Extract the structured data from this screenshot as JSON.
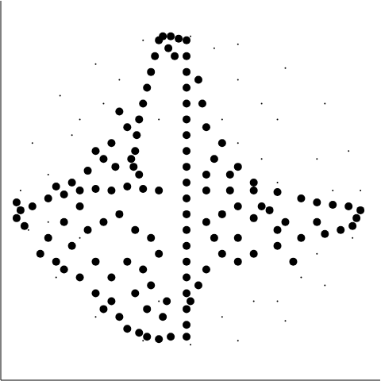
{
  "chart_data": {
    "type": "scatter",
    "xlim": [
      0,
      480
    ],
    "ylim": [
      0,
      480
    ],
    "xticks": [
      0,
      480
    ],
    "yticks": [
      0,
      480
    ],
    "tick_labels": false,
    "grid": false,
    "series": [
      {
        "marker": "point",
        "color": "#000000",
        "points": [
          [
            240,
            435
          ],
          [
            300,
            425
          ],
          [
            360,
            395
          ],
          [
            410,
            350
          ],
          [
            440,
            290
          ],
          [
            455,
            240
          ],
          [
            445,
            180
          ],
          [
            410,
            120
          ],
          [
            360,
            75
          ],
          [
            300,
            50
          ],
          [
            240,
            45
          ],
          [
            180,
            50
          ],
          [
            120,
            80
          ],
          [
            70,
            130
          ],
          [
            35,
            190
          ],
          [
            25,
            240
          ],
          [
            40,
            300
          ],
          [
            75,
            360
          ],
          [
            120,
            400
          ],
          [
            180,
            430
          ],
          [
            100,
            330
          ],
          [
            150,
            380
          ],
          [
            300,
            380
          ],
          [
            350,
            330
          ],
          [
            400,
            280
          ],
          [
            380,
            130
          ],
          [
            320,
            100
          ],
          [
            280,
            80
          ],
          [
            100,
            180
          ],
          [
            60,
            260
          ],
          [
            200,
            330
          ],
          [
            280,
            330
          ],
          [
            330,
            280
          ],
          [
            400,
            160
          ],
          [
            200,
            100
          ],
          [
            90,
            310
          ],
          [
            330,
            350
          ],
          [
            270,
            420
          ],
          [
            130,
            350
          ],
          [
            420,
            240
          ],
          [
            350,
            100
          ],
          [
            60,
            200
          ],
          [
            300,
            300
          ],
          [
            350,
            250
          ]
        ]
      },
      {
        "marker": "circle",
        "color": "#000000",
        "points": [
          [
            235,
            430
          ],
          [
            235,
            410
          ],
          [
            235,
            390
          ],
          [
            235,
            370
          ],
          [
            235,
            350
          ],
          [
            235,
            330
          ],
          [
            235,
            310
          ],
          [
            235,
            290
          ],
          [
            235,
            270
          ],
          [
            235,
            250
          ],
          [
            235,
            230
          ],
          [
            235,
            210
          ],
          [
            235,
            190
          ],
          [
            235,
            170
          ],
          [
            235,
            150
          ],
          [
            235,
            130
          ],
          [
            235,
            110
          ],
          [
            235,
            90
          ],
          [
            235,
            70
          ],
          [
            235,
            55
          ],
          [
            200,
            430
          ],
          [
            195,
            410
          ],
          [
            190,
            390
          ],
          [
            185,
            370
          ],
          [
            180,
            350
          ],
          [
            175,
            330
          ],
          [
            172,
            310
          ],
          [
            170,
            290
          ],
          [
            168,
            270
          ],
          [
            175,
            60
          ],
          [
            185,
            55
          ],
          [
            200,
            52
          ],
          [
            215,
            55
          ],
          [
            205,
            80
          ],
          [
            210,
            100
          ],
          [
            205,
            435
          ],
          [
            215,
            435
          ],
          [
            225,
            432
          ],
          [
            212,
            420
          ],
          [
            220,
            410
          ],
          [
            260,
            240
          ],
          [
            290,
            240
          ],
          [
            320,
            240
          ],
          [
            350,
            238
          ],
          [
            20,
            225
          ],
          [
            25,
            215
          ],
          [
            20,
            205
          ],
          [
            30,
            195
          ],
          [
            40,
            220
          ],
          [
            60,
            230
          ],
          [
            80,
            235
          ],
          [
            100,
            240
          ],
          [
            120,
            242
          ],
          [
            140,
            240
          ],
          [
            160,
            245
          ],
          [
            180,
            242
          ],
          [
            200,
            240
          ],
          [
            380,
            230
          ],
          [
            400,
            225
          ],
          [
            420,
            222
          ],
          [
            440,
            220
          ],
          [
            455,
            215
          ],
          [
            450,
            205
          ],
          [
            445,
            195
          ],
          [
            430,
            190
          ],
          [
            410,
            185
          ],
          [
            150,
            340
          ],
          [
            160,
            320
          ],
          [
            140,
            300
          ],
          [
            130,
            280
          ],
          [
            110,
            265
          ],
          [
            90,
            250
          ],
          [
            70,
            245
          ],
          [
            120,
            290
          ],
          [
            145,
            270
          ],
          [
            165,
            280
          ],
          [
            175,
            260
          ],
          [
            100,
            220
          ],
          [
            80,
            200
          ],
          [
            60,
            180
          ],
          [
            50,
            160
          ],
          [
            70,
            150
          ],
          [
            90,
            170
          ],
          [
            110,
            190
          ],
          [
            130,
            200
          ],
          [
            150,
            210
          ],
          [
            170,
            190
          ],
          [
            190,
            180
          ],
          [
            200,
            160
          ],
          [
            180,
            140
          ],
          [
            160,
            150
          ],
          [
            140,
            130
          ],
          [
            120,
            110
          ],
          [
            130,
            90
          ],
          [
            150,
            80
          ],
          [
            160,
            65
          ],
          [
            140,
            100
          ],
          [
            100,
            130
          ],
          [
            80,
            140
          ],
          [
            120,
            150
          ],
          [
            190,
            120
          ],
          [
            185,
            90
          ],
          [
            170,
            110
          ],
          [
            260,
            200
          ],
          [
            280,
            210
          ],
          [
            300,
            220
          ],
          [
            320,
            205
          ],
          [
            340,
            215
          ],
          [
            360,
            200
          ],
          [
            300,
            180
          ],
          [
            280,
            160
          ],
          [
            260,
            140
          ],
          [
            250,
            120
          ],
          [
            240,
            100
          ],
          [
            270,
            180
          ],
          [
            320,
            160
          ],
          [
            300,
            150
          ],
          [
            350,
            170
          ],
          [
            380,
            180
          ],
          [
            270,
            280
          ],
          [
            280,
            300
          ],
          [
            300,
            270
          ],
          [
            320,
            250
          ],
          [
            260,
            320
          ],
          [
            255,
            350
          ],
          [
            250,
            380
          ],
          [
            290,
            260
          ],
          [
            260,
            260
          ],
          [
            330,
            220
          ],
          [
            370,
            150
          ],
          [
            400,
            200
          ],
          [
            350,
            190
          ]
        ]
      }
    ]
  }
}
